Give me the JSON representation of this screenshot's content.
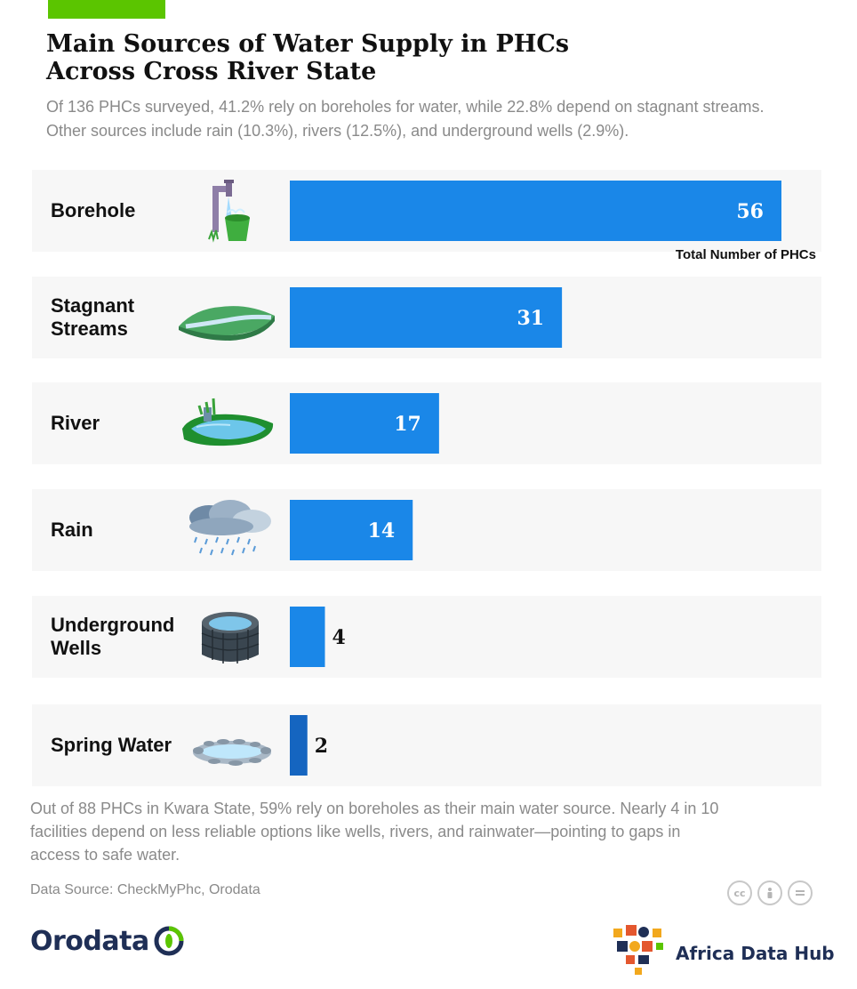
{
  "header": {
    "title_line1": "Main Sources of Water Supply in PHCs",
    "title_line2": "Across Cross River State",
    "subtitle_line1": "Of 136 PHCs surveyed, 41.2% rely on boreholes for water, while 22.8% depend on stagnant streams.",
    "subtitle_line2": "Other sources include rain (10.3%), rivers (12.5%), and underground wells (2.9%)."
  },
  "colors": {
    "accent": "#5bc500",
    "bar": "#1a87e8",
    "bar_small": "#1565c0",
    "row_bg": "#f7f7f7"
  },
  "chart_data": {
    "type": "bar",
    "orientation": "horizontal",
    "categories": [
      "Borehole",
      "Stagnant Streams",
      "River",
      "Rain",
      "Underground Wells",
      "Spring Water"
    ],
    "label_lines": [
      [
        "Borehole"
      ],
      [
        "Stagnant",
        "Streams"
      ],
      [
        "River"
      ],
      [
        "Rain"
      ],
      [
        "Underground",
        "Wells"
      ],
      [
        "Spring Water"
      ]
    ],
    "icons": [
      "water-tap-bucket-icon",
      "stream-icon",
      "river-icon",
      "rain-cloud-icon",
      "well-icon",
      "spring-water-icon"
    ],
    "values": [
      56,
      31,
      17,
      14,
      4,
      2
    ],
    "xlim": [
      0,
      56
    ],
    "value_axis_label": "Total Number of PHCs",
    "grid": false,
    "legend": "none"
  },
  "footer": {
    "note_line1": "Out of 88 PHCs in Kwara State, 59% rely on boreholes as their main water source. Nearly 4 in 10",
    "note_line2": "facilities depend on less reliable options like wells, rivers, and rainwater—pointing to gaps in",
    "note_line3": "access to safe water.",
    "source": "Data Source: CheckMyPhc, Orodata",
    "license_icons": [
      "cc-icon",
      "by-icon",
      "nd-icon"
    ],
    "logo_left": "Orodata",
    "logo_right": "Africa Data Hub"
  }
}
